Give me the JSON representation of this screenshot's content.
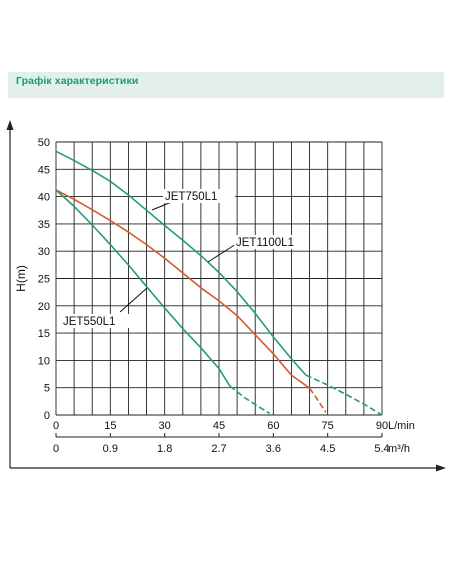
{
  "header": {
    "title": "Графік характеристики"
  },
  "colors": {
    "section_bg": "#e3efe9",
    "section_text": "#1e9a6c",
    "green_curve": "#1f9e78",
    "orange_curve": "#d65a2a",
    "grid": "#222222"
  },
  "chart_data": {
    "type": "line",
    "ylabel": "H(m)",
    "x_unit": "L/min",
    "x2_unit": "m³/h",
    "xlim": [
      0,
      90
    ],
    "ylim": [
      0,
      50
    ],
    "x_ticks": [
      "0",
      "15",
      "30",
      "45",
      "60",
      "75",
      "90"
    ],
    "x2_ticks": [
      "0",
      "0.9",
      "1.8",
      "2.7",
      "3.6",
      "4.5",
      "5.4"
    ],
    "y_ticks": [
      "0",
      "5",
      "10",
      "15",
      "20",
      "25",
      "30",
      "35",
      "40",
      "45",
      "50"
    ],
    "grid": true,
    "series": [
      {
        "name": "JET750L1",
        "color": "#1f9e78",
        "x": [
          0,
          5,
          10,
          15,
          20,
          25,
          30,
          35,
          40,
          45,
          50,
          55,
          60,
          65,
          69
        ],
        "y": [
          48.3,
          46.6,
          44.8,
          42.8,
          40.3,
          37.5,
          34.7,
          32,
          29.2,
          26.1,
          22.6,
          18.6,
          14.3,
          10.3,
          7.3
        ],
        "extension_x": [
          69,
          75,
          80,
          85,
          90
        ],
        "extension_y": [
          7.3,
          5.5,
          3.8,
          2.0,
          0
        ]
      },
      {
        "name": "JET1100L1",
        "color": "#d65a2a",
        "x": [
          0,
          5,
          10,
          15,
          20,
          25,
          30,
          35,
          40,
          45,
          50,
          55,
          60,
          65,
          70
        ],
        "y": [
          41.2,
          39.5,
          37.6,
          35.6,
          33.5,
          31.2,
          28.7,
          26,
          23.3,
          20.9,
          18.2,
          14.7,
          11.2,
          7.3,
          4.9
        ],
        "extension_x": [
          70,
          72,
          74.5
        ],
        "extension_y": [
          4.9,
          3,
          0.5
        ]
      },
      {
        "name": "JET550L1",
        "color": "#1f9e78",
        "x": [
          0,
          5,
          10,
          15,
          20,
          25,
          30,
          35,
          40,
          45,
          48
        ],
        "y": [
          41.2,
          38.2,
          34.8,
          31.2,
          27.5,
          23.5,
          19.6,
          15.8,
          12.3,
          8.5,
          5.3
        ],
        "extension_x": [
          48,
          52,
          56,
          59
        ],
        "extension_y": [
          5.3,
          3.2,
          1.5,
          0.3
        ]
      }
    ]
  }
}
